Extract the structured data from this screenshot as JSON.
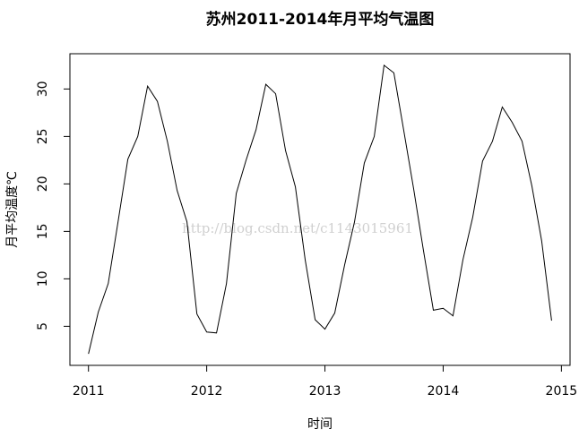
{
  "chart_data": {
    "type": "line",
    "title": "苏州2011-2014年月平均气温图",
    "x_label": "时间",
    "y_label": "月平均温度℃",
    "watermark": "http://blog.csdn.net/c1143015961",
    "color": "#000000",
    "x": [
      2011,
      2011.083,
      2011.167,
      2011.25,
      2011.333,
      2011.417,
      2011.5,
      2011.583,
      2011.667,
      2011.75,
      2011.833,
      2011.917,
      2012,
      2012.083,
      2012.167,
      2012.25,
      2012.333,
      2012.417,
      2012.5,
      2012.583,
      2012.667,
      2012.75,
      2012.833,
      2012.917,
      2013,
      2013.083,
      2013.167,
      2013.25,
      2013.333,
      2013.417,
      2013.5,
      2013.583,
      2013.667,
      2013.75,
      2013.833,
      2013.917,
      2014,
      2014.083,
      2014.167,
      2014.25,
      2014.333,
      2014.417,
      2014.5,
      2014.583,
      2014.667,
      2014.75,
      2014.833,
      2014.917
    ],
    "values": [
      2.1,
      6.5,
      9.5,
      16,
      22.6,
      25,
      30.3,
      28.7,
      24.5,
      19.3,
      16,
      6.3,
      4.4,
      4.3,
      9.5,
      19,
      22.5,
      25.7,
      30.5,
      29.5,
      23.5,
      19.7,
      12,
      5.7,
      4.7,
      6.4,
      11.5,
      16,
      22.2,
      25,
      32.5,
      31.7,
      25.6,
      19.5,
      13,
      6.7,
      6.9,
      6.1,
      12,
      16.5,
      22.4,
      24.5,
      28.1,
      26.5,
      24.5,
      19.8,
      14,
      5.6
    ],
    "xlim": [
      2010.843,
      2015.073
    ],
    "ylim": [
      0.884,
      33.716
    ],
    "xticks": [
      2011,
      2012,
      2013,
      2014,
      2015
    ],
    "yticks": [
      5,
      10,
      15,
      20,
      25,
      30
    ]
  }
}
